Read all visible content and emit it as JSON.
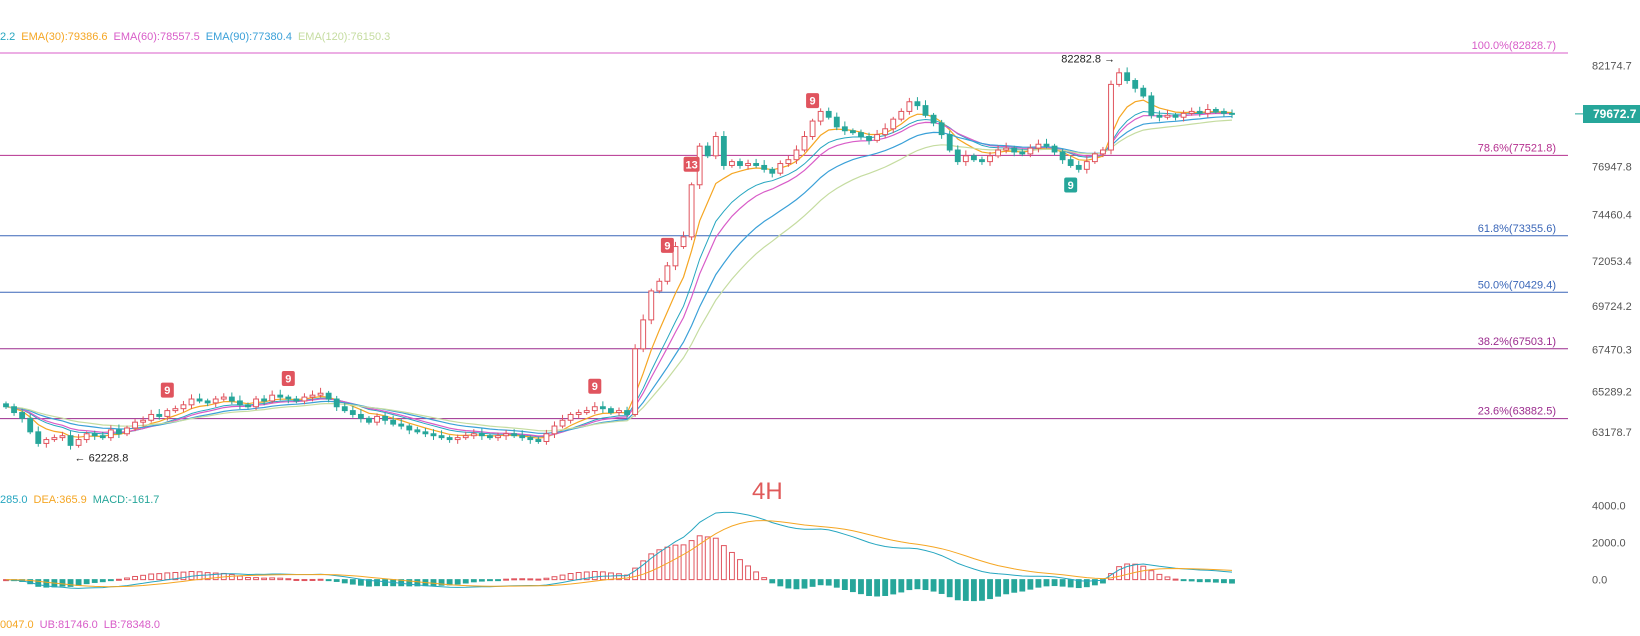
{
  "chart_data": [
    {
      "type": "candlestick",
      "timeframe_label": "4H",
      "legend": [
        {
          "text": "2.2",
          "color": "#26a6c0"
        },
        {
          "text": "EMA(30):79386.6",
          "color": "#f5a623"
        },
        {
          "text": "EMA(60):78557.5",
          "color": "#d85cc8"
        },
        {
          "text": "EMA(90):77380.4",
          "color": "#3aa0d8"
        },
        {
          "text": "EMA(120):76150.3",
          "color": "#c5dca0"
        }
      ],
      "y_ticks": [
        "82174.7",
        "79672.7",
        "76947.8",
        "74460.4",
        "72053.4",
        "69724.2",
        "67470.3",
        "65289.2",
        "63178.7"
      ],
      "y_tick_values": [
        82174.7,
        79672.7,
        76947.8,
        74460.4,
        72053.4,
        69724.2,
        67470.3,
        65289.2,
        63178.7
      ],
      "ylim": [
        62000,
        83500
      ],
      "current_price": {
        "label": "79672.7",
        "value": 79672.7,
        "color": "#26a69a"
      },
      "fib_levels": [
        {
          "label": "100.0%(82828.7)",
          "value": 82828.7,
          "color": "#d85cc8"
        },
        {
          "label": "78.6%(77521.8)",
          "value": 77521.8,
          "color": "#b5308f"
        },
        {
          "label": "61.8%(73355.6)",
          "value": 73355.6,
          "color": "#3a66b8"
        },
        {
          "label": "50.0%(70429.4)",
          "value": 70429.4,
          "color": "#3a66b8"
        },
        {
          "label": "38.2%(67503.1)",
          "value": 67503.1,
          "color": "#9b2b8e"
        },
        {
          "label": "23.6%(63882.5)",
          "value": 63882.5,
          "color": "#9b2b8e"
        }
      ],
      "annotations": [
        {
          "label": "82282.8 →",
          "value": 82282.8,
          "type": "high"
        },
        {
          "label": "← 62228.8",
          "value": 62228.8,
          "type": "low"
        }
      ],
      "signals": [
        {
          "label": "9",
          "kind": "sell",
          "index": 20
        },
        {
          "label": "9",
          "kind": "sell",
          "index": 35
        },
        {
          "label": "9",
          "kind": "sell",
          "index": 73
        },
        {
          "label": "9",
          "kind": "sell",
          "index": 82
        },
        {
          "label": "13",
          "kind": "sell",
          "index": 85
        },
        {
          "label": "9",
          "kind": "sell",
          "index": 100
        },
        {
          "label": "9",
          "kind": "buy",
          "index": 132
        }
      ],
      "series": [
        {
          "name": "EMA(30)",
          "color": "#f5a623"
        },
        {
          "name": "EMA(60)",
          "color": "#d85cc8"
        },
        {
          "name": "EMA(90)",
          "color": "#3aa0d8"
        },
        {
          "name": "EMA(120)",
          "color": "#c5dca0"
        }
      ],
      "close": [
        64500,
        64200,
        63900,
        63200,
        62600,
        62800,
        62900,
        63000,
        62500,
        62800,
        63100,
        63000,
        62900,
        63300,
        63100,
        63400,
        63700,
        63800,
        64100,
        64000,
        64300,
        64400,
        64600,
        64900,
        64800,
        64700,
        64900,
        65000,
        64800,
        64600,
        64500,
        64900,
        64800,
        65100,
        65000,
        64900,
        64800,
        65000,
        65100,
        65200,
        64900,
        64500,
        64300,
        64100,
        63900,
        63700,
        64000,
        63800,
        63600,
        63500,
        63300,
        63200,
        63100,
        63000,
        62900,
        62800,
        62900,
        63000,
        63100,
        63000,
        62900,
        63000,
        63100,
        63000,
        62900,
        62800,
        62700,
        63100,
        63500,
        63800,
        64100,
        64200,
        64300,
        64500,
        64400,
        64200,
        64300,
        64100,
        67500,
        69000,
        70500,
        71000,
        71800,
        72800,
        73300,
        76000,
        78000,
        77500,
        78500,
        77000,
        77200,
        77000,
        77100,
        77000,
        76800,
        76600,
        77100,
        77300,
        77800,
        78500,
        79300,
        79800,
        79500,
        79000,
        78800,
        78700,
        78500,
        78300,
        78600,
        78900,
        79400,
        79800,
        80300,
        80100,
        79600,
        79200,
        78600,
        77800,
        77200,
        77500,
        77300,
        77200,
        77500,
        77800,
        77900,
        77700,
        77600,
        77900,
        78100,
        78000,
        77700,
        77300,
        77000,
        76800,
        77200,
        77600,
        77800,
        81200,
        81800,
        81400,
        81000,
        80600,
        79600,
        79500,
        79600,
        79500,
        79700,
        79800,
        79700,
        79900,
        79800,
        79700,
        79672.7
      ],
      "macd_legend": [
        {
          "text": "285.0",
          "color": "#26a6c0"
        },
        {
          "text": "DEA:365.9",
          "color": "#f5a623"
        },
        {
          "text": "MACD:-161.7",
          "color": "#26a69a"
        }
      ],
      "macd_y_ticks": [
        "4000.0",
        "2000.0",
        "0.0"
      ],
      "macd_y_tick_values": [
        4000,
        2000,
        0
      ],
      "macd_ylim": [
        -1100,
        4300
      ],
      "boll_legend": [
        {
          "text": "0047.0",
          "color": "#f5a623"
        },
        {
          "text": "UB:81746.0",
          "color": "#d85cc8"
        },
        {
          "text": "LB:78348.0",
          "color": "#d85cc8"
        }
      ]
    }
  ]
}
